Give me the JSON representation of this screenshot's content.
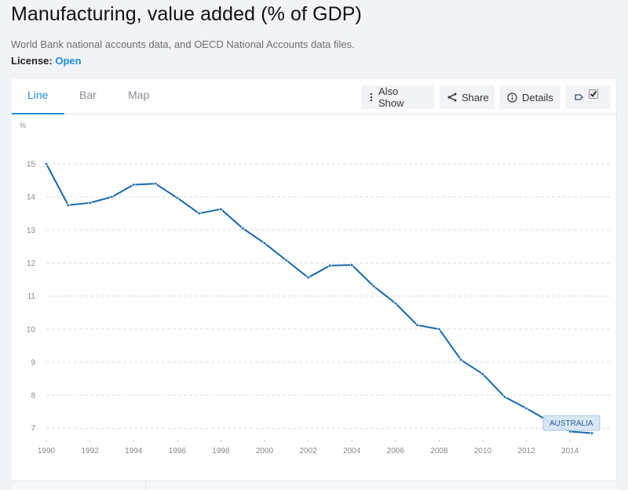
{
  "header": {
    "title": "Manufacturing, value added (% of GDP)",
    "source": "World Bank national accounts data, and OECD National Accounts data files.",
    "license_label": "License:",
    "license_value": "Open"
  },
  "tabs": [
    {
      "label": "Line",
      "active": true
    },
    {
      "label": "Bar",
      "active": false
    },
    {
      "label": "Map",
      "active": false
    }
  ],
  "toolbar": {
    "also_show": "Also Show",
    "share": "Share",
    "details": "Details"
  },
  "colors": {
    "accent": "#1e8ee0",
    "series": "#1567ac",
    "label_bg": "#d6e6f4"
  },
  "chart_data": {
    "type": "line",
    "title": "Manufacturing, value added (% of GDP)",
    "xlabel": "",
    "ylabel": "%",
    "x": [
      1990,
      1991,
      1992,
      1993,
      1994,
      1995,
      1996,
      1997,
      1998,
      1999,
      2000,
      2001,
      2002,
      2003,
      2004,
      2005,
      2006,
      2007,
      2008,
      2009,
      2010,
      2011,
      2012,
      2013,
      2014,
      2015
    ],
    "series": [
      {
        "name": "AUSTRALIA",
        "values": [
          15.0,
          13.75,
          13.82,
          14.0,
          14.37,
          14.4,
          13.97,
          13.5,
          13.63,
          13.05,
          12.6,
          12.08,
          11.56,
          11.92,
          11.94,
          11.3,
          10.78,
          10.12,
          10.0,
          9.07,
          8.64,
          7.95,
          7.6,
          7.22,
          6.9,
          6.85
        ]
      }
    ],
    "yticks": [
      "7",
      "8",
      "9",
      "10",
      "11",
      "12",
      "13",
      "14",
      "15"
    ],
    "xticks": [
      "1990",
      "1992",
      "1994",
      "1996",
      "1998",
      "2000",
      "2002",
      "2004",
      "2006",
      "2008",
      "2010",
      "2012",
      "2014"
    ],
    "ylim": [
      6.5,
      15.5
    ],
    "xlim": [
      1990,
      2016
    ],
    "grid": true,
    "legend": "inline label near end of series"
  }
}
